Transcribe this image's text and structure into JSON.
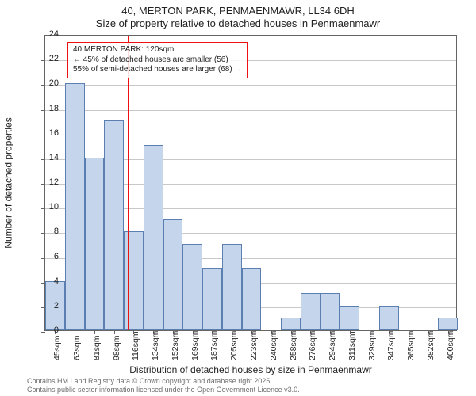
{
  "title_line1": "40, MERTON PARK, PENMAENMAWR, LL34 6DH",
  "title_line2": "Size of property relative to detached houses in Penmaenmawr",
  "y_axis_label": "Number of detached properties",
  "x_axis_label": "Distribution of detached houses by size in Penmaenmawr",
  "credits_line1": "Contains HM Land Registry data © Crown copyright and database right 2025.",
  "credits_line2": "Contains public sector information licensed under the Open Government Licence v3.0.",
  "chart": {
    "type": "histogram",
    "ylim": [
      0,
      24
    ],
    "ytick_step": 2,
    "bar_fill": "#c5d6ec",
    "bar_border": "#5a7fb0",
    "grid_color": "#c8c8c8",
    "axis_color": "#646464",
    "background": "#ffffff",
    "bar_width_ratio": 1.0,
    "categories": [
      "45sqm",
      "63sqm",
      "81sqm",
      "98sqm",
      "116sqm",
      "134sqm",
      "152sqm",
      "169sqm",
      "187sqm",
      "205sqm",
      "223sqm",
      "240sqm",
      "258sqm",
      "276sqm",
      "294sqm",
      "311sqm",
      "329sqm",
      "347sqm",
      "365sqm",
      "382sqm",
      "400sqm"
    ],
    "values": [
      4,
      20,
      14,
      17,
      8,
      15,
      9,
      7,
      5,
      7,
      5,
      0,
      1,
      3,
      3,
      2,
      0,
      2,
      0,
      0,
      1
    ],
    "reference": {
      "category_index_after": 4,
      "fraction_within_slot": 0.22,
      "line_color": "#ee1111",
      "annotation": {
        "line1": "40 MERTON PARK: 120sqm",
        "line2": "← 45% of detached houses are smaller (56)",
        "line3": "55% of semi-detached houses are larger (68) →",
        "border_color": "#ee1111"
      }
    }
  }
}
